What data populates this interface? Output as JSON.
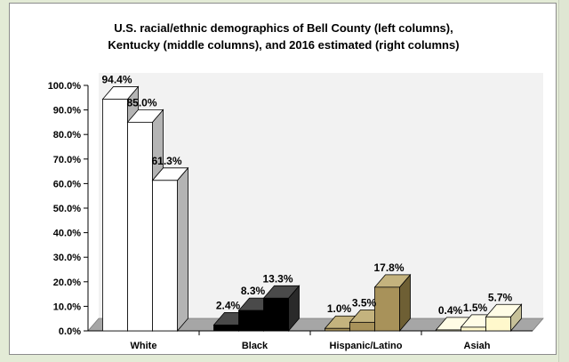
{
  "chart_data": {
    "type": "bar",
    "style": "3d-clustered",
    "title_lines": [
      "U.S. racial/ethnic demographics of Bell County (left columns),",
      "Kentucky (middle columns), and 2016 estimated (right columns)"
    ],
    "categories": [
      "White",
      "Black",
      "Hispanic/Latino",
      "Asiah"
    ],
    "series": [
      {
        "name": "Bell County",
        "values": [
          94.4,
          2.4,
          1.0,
          0.4
        ]
      },
      {
        "name": "Kentucky",
        "values": [
          85.0,
          8.3,
          3.5,
          1.5
        ]
      },
      {
        "name": "2016 estimated",
        "values": [
          61.3,
          13.3,
          17.8,
          5.7
        ]
      }
    ],
    "data_labels": [
      [
        "94.4%",
        "2.4%",
        "1.0%",
        "0.4%"
      ],
      [
        "85.0%",
        "8.3%",
        "3.5%",
        "1.5%"
      ],
      [
        "61.3%",
        "13.3%",
        "17.8%",
        "5.7%"
      ]
    ],
    "y_ticks": [
      "0.0%",
      "10.0%",
      "20.0%",
      "30.0%",
      "40.0%",
      "50.0%",
      "60.0%",
      "70.0%",
      "80.0%",
      "90.0%",
      "100.0%"
    ],
    "ylim": [
      0,
      100
    ],
    "xlabel": "",
    "ylabel": "",
    "grid": false,
    "legend": "none",
    "colors": {
      "front": [
        "#ffffff",
        "#000000",
        "#a8925a",
        "#fff8cc"
      ],
      "side": [
        "#b4b4b4",
        "#2a2a2a",
        "#6e5f34",
        "#c7c199"
      ],
      "top": [
        "#ffffff",
        "#4a4a4a",
        "#c4b37e",
        "#fffce6"
      ],
      "wall": "#f2f2f2",
      "floor": "#a6a6a6",
      "frame_bg": "#e3ebd6"
    }
  }
}
